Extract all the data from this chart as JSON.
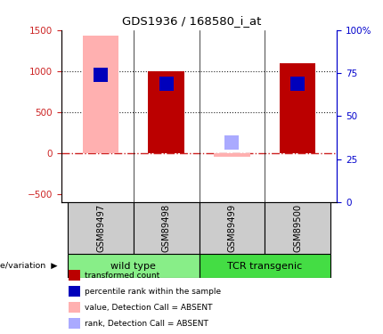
{
  "title": "GDS1936 / 168580_i_at",
  "samples": [
    "GSM89497",
    "GSM89498",
    "GSM89499",
    "GSM89500"
  ],
  "transformed_count": [
    1430,
    1000,
    -50,
    1100
  ],
  "transformed_count_absent": [
    true,
    false,
    true,
    false
  ],
  "percentile_rank_value": [
    950,
    840,
    130,
    840
  ],
  "percentile_rank_absent": [
    false,
    false,
    true,
    false
  ],
  "ylim_left": [
    -600,
    1500
  ],
  "yticks_left": [
    -500,
    0,
    500,
    1000,
    1500
  ],
  "yticks_right": [
    0,
    25,
    50,
    75,
    100
  ],
  "bar_width": 0.55,
  "rank_marker_size": 120,
  "colors": {
    "transformed_present": "#BB0000",
    "transformed_absent": "#FFB0B0",
    "rank_present": "#0000BB",
    "rank_absent": "#AAAAFF",
    "zero_line": "#CC2222",
    "dotted_line": "#222222",
    "group_wt_color": "#88EE88",
    "group_tcr_color": "#44DD44",
    "sample_box_color": "#CCCCCC",
    "left_axis_color": "#CC2222",
    "right_axis_color": "#0000CC"
  },
  "legend_items": [
    {
      "label": "transformed count",
      "color": "#BB0000"
    },
    {
      "label": "percentile rank within the sample",
      "color": "#0000BB"
    },
    {
      "label": "value, Detection Call = ABSENT",
      "color": "#FFB0B0"
    },
    {
      "label": "rank, Detection Call = ABSENT",
      "color": "#AAAAFF"
    }
  ],
  "group_positions": [
    {
      "indices": [
        0,
        1
      ],
      "label": "wild type",
      "color": "#88EE88"
    },
    {
      "indices": [
        2,
        3
      ],
      "label": "TCR transgenic",
      "color": "#44DD44"
    }
  ]
}
